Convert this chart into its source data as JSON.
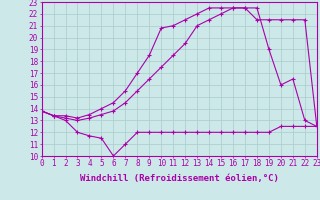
{
  "bg_color": "#cce8e8",
  "line_color": "#aa00aa",
  "grid_color": "#aacccc",
  "xlabel": "Windchill (Refroidissement éolien,°C)",
  "xlabel_fontsize": 6.5,
  "tick_fontsize": 5.5,
  "xmin": 0,
  "xmax": 23,
  "ymin": 10,
  "ymax": 23,
  "line1_x": [
    0,
    1,
    2,
    3,
    4,
    5,
    6,
    7,
    8,
    9,
    10,
    11,
    12,
    13,
    14,
    15,
    16,
    17,
    18,
    19,
    20,
    21,
    22,
    23
  ],
  "line1_y": [
    13.8,
    13.4,
    13.0,
    12.0,
    11.7,
    11.5,
    10.0,
    11.0,
    12.0,
    12.0,
    12.0,
    12.0,
    12.0,
    12.0,
    12.0,
    12.0,
    12.0,
    12.0,
    12.0,
    12.0,
    12.5,
    12.5,
    12.5,
    12.5
  ],
  "line2_x": [
    0,
    1,
    2,
    3,
    4,
    5,
    6,
    7,
    8,
    9,
    10,
    11,
    12,
    13,
    14,
    15,
    16,
    17,
    18,
    19,
    20,
    21,
    22,
    23
  ],
  "line2_y": [
    13.8,
    13.4,
    13.2,
    13.0,
    13.2,
    13.5,
    13.8,
    14.5,
    15.5,
    16.5,
    17.5,
    18.5,
    19.5,
    21.0,
    21.5,
    22.0,
    22.5,
    22.5,
    22.5,
    19.0,
    16.0,
    16.5,
    13.0,
    12.5
  ],
  "line3_x": [
    0,
    1,
    2,
    3,
    4,
    5,
    6,
    7,
    8,
    9,
    10,
    11,
    12,
    13,
    14,
    15,
    16,
    17,
    18,
    19,
    20,
    21,
    22,
    23
  ],
  "line3_y": [
    13.8,
    13.4,
    13.4,
    13.2,
    13.5,
    14.0,
    14.5,
    15.5,
    17.0,
    18.5,
    20.8,
    21.0,
    21.5,
    22.0,
    22.5,
    22.5,
    22.5,
    22.5,
    21.5,
    21.5,
    21.5,
    21.5,
    21.5,
    12.5
  ]
}
